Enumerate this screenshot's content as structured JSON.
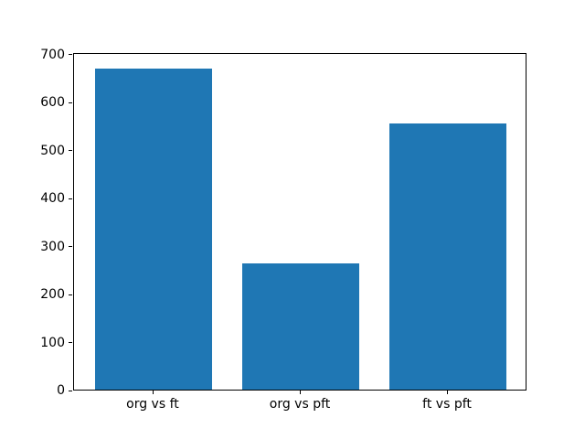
{
  "chart_data": {
    "type": "bar",
    "title": "",
    "xlabel": "",
    "ylabel": "",
    "categories": [
      "org vs ft",
      "org vs pft",
      "ft vs pft"
    ],
    "values": [
      670,
      264,
      554
    ],
    "yticks": [
      0,
      100,
      200,
      300,
      400,
      500,
      600,
      700
    ],
    "ylim": [
      0,
      703.5
    ],
    "xlim": [
      -0.54,
      2.54
    ],
    "bar_width_fraction": 0.8,
    "bar_color": "#1f77b4",
    "grid": false,
    "legend": null
  },
  "figure": {
    "background": "#ffffff",
    "spine_color": "#000000",
    "tick_label_color": "#000000"
  }
}
